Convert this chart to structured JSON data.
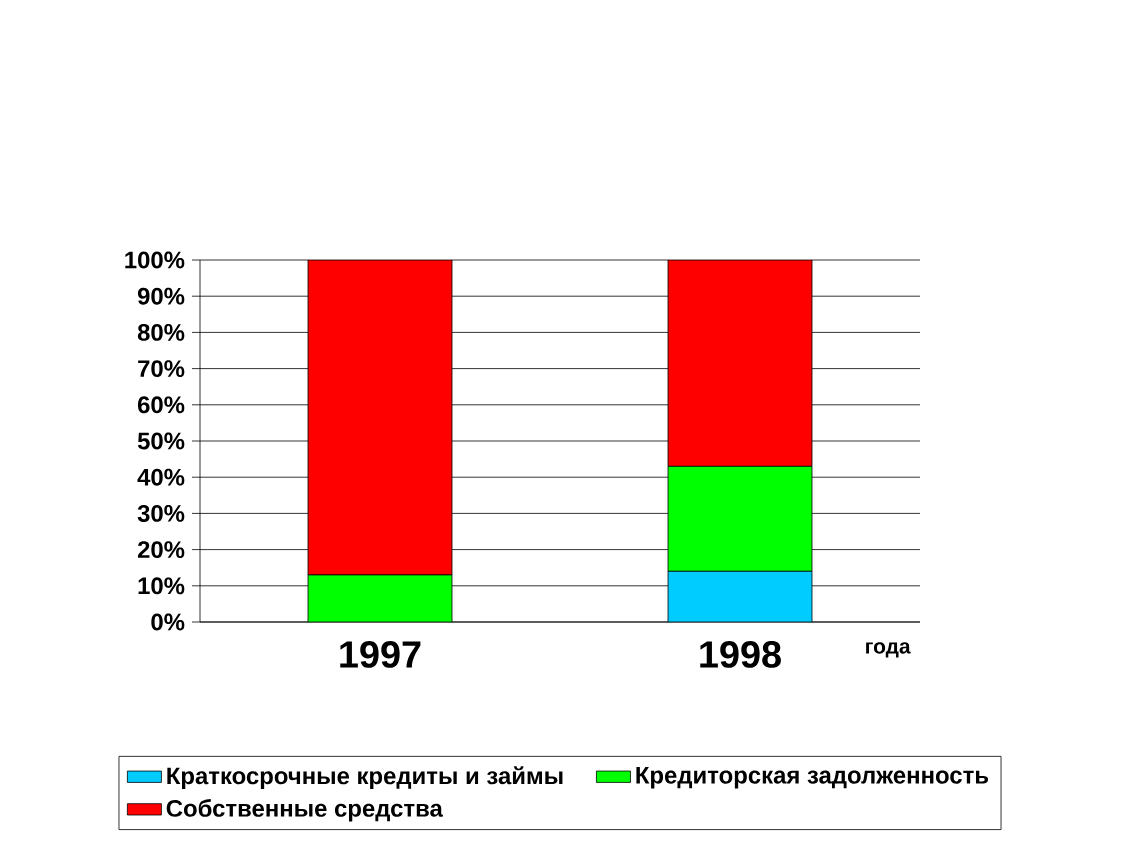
{
  "chart_data": {
    "type": "bar",
    "stacked": true,
    "categories": [
      "1997",
      "1998"
    ],
    "xlabel": "года",
    "series": [
      {
        "name": "Краткосрочные кредиты и займы",
        "color": "#00ccff",
        "values": [
          0,
          14
        ]
      },
      {
        "name": "Кредиторская задолженность",
        "color": "#00ff00",
        "values": [
          13,
          29
        ]
      },
      {
        "name": "Собственные средства",
        "color": "#ff0000",
        "values": [
          87,
          57
        ]
      }
    ],
    "ylim": [
      0,
      100
    ],
    "yticks": [
      {
        "value": 0,
        "label": "0%"
      },
      {
        "value": 10,
        "label": "10%"
      },
      {
        "value": 20,
        "label": "20%"
      },
      {
        "value": 30,
        "label": "30%"
      },
      {
        "value": 40,
        "label": "40%"
      },
      {
        "value": 50,
        "label": "50%"
      },
      {
        "value": 60,
        "label": "60%"
      },
      {
        "value": 70,
        "label": "70%"
      },
      {
        "value": 80,
        "label": "80%"
      },
      {
        "value": 90,
        "label": "90%"
      },
      {
        "value": 100,
        "label": "100%"
      }
    ],
    "grid": "y",
    "legend": "bottom"
  }
}
